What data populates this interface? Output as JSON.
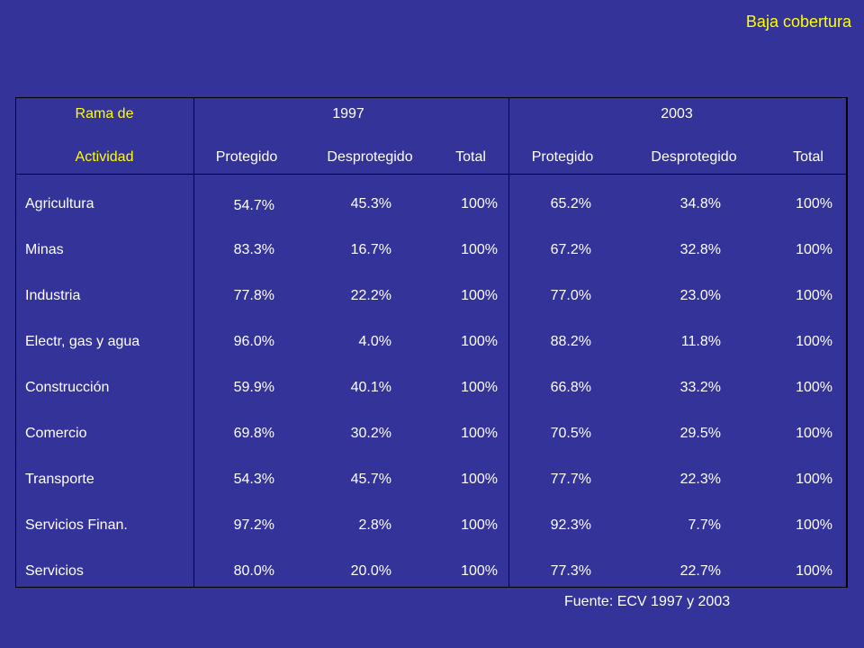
{
  "slide_title": "Baja cobertura",
  "header": {
    "rama_line1": "Rama de",
    "rama_line2": "Actividad",
    "year1": "1997",
    "year2": "2003",
    "protegido": "Protegido",
    "desprotegido": "Desprotegido",
    "total": "Total"
  },
  "rows": [
    {
      "sector": "Agricultura",
      "p97": "54.7%",
      "d97": "45.3%",
      "t97": "100%",
      "p03": "65.2%",
      "d03": "34.8%",
      "t03": "100%"
    },
    {
      "sector": "Minas",
      "p97": "83.3%",
      "d97": "16.7%",
      "t97": "100%",
      "p03": "67.2%",
      "d03": "32.8%",
      "t03": "100%"
    },
    {
      "sector": "Industria",
      "p97": "77.8%",
      "d97": "22.2%",
      "t97": "100%",
      "p03": "77.0%",
      "d03": "23.0%",
      "t03": "100%"
    },
    {
      "sector": "Electr, gas y agua",
      "p97": "96.0%",
      "d97": "4.0%",
      "t97": "100%",
      "p03": "88.2%",
      "d03": "11.8%",
      "t03": "100%"
    },
    {
      "sector": "Construcción",
      "p97": "59.9%",
      "d97": "40.1%",
      "t97": "100%",
      "p03": "66.8%",
      "d03": "33.2%",
      "t03": "100%"
    },
    {
      "sector": "Comercio",
      "p97": "69.8%",
      "d97": "30.2%",
      "t97": "100%",
      "p03": "70.5%",
      "d03": "29.5%",
      "t03": "100%"
    },
    {
      "sector": "Transporte",
      "p97": "54.3%",
      "d97": "45.7%",
      "t97": "100%",
      "p03": "77.7%",
      "d03": "22.3%",
      "t03": "100%"
    },
    {
      "sector": "Servicios Finan.",
      "p97": "97.2%",
      "d97": "2.8%",
      "t97": "100%",
      "p03": "92.3%",
      "d03": "7.7%",
      "t03": "100%"
    },
    {
      "sector": "Servicios",
      "p97": "80.0%",
      "d97": "20.0%",
      "t97": "100%",
      "p03": "77.3%",
      "d03": "22.7%",
      "t03": "100%"
    }
  ],
  "footer": "Fuente: ECV 1997 y 2003",
  "colors": {
    "background": "#333399",
    "accent": "#ffff00",
    "text": "#ffffff",
    "lines": "#000000"
  }
}
